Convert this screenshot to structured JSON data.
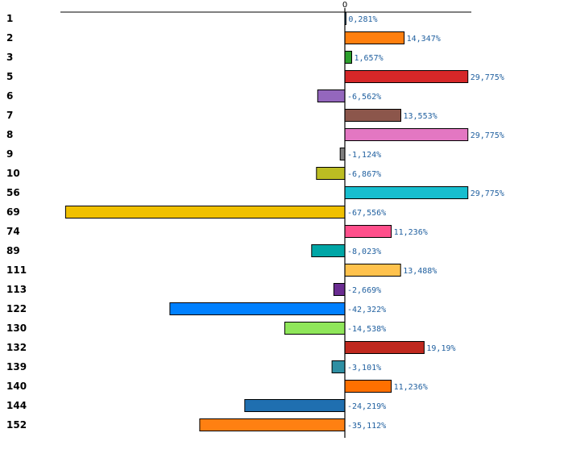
{
  "chart_data": {
    "type": "bar",
    "orientation": "horizontal",
    "title": "",
    "xlabel": "",
    "ylabel": "",
    "xlim": [
      -68,
      30
    ],
    "zero_tick_label": "0",
    "grid": false,
    "legend": "none",
    "categories": [
      "1",
      "2",
      "3",
      "5",
      "6",
      "7",
      "8",
      "9",
      "10",
      "56",
      "69",
      "74",
      "89",
      "111",
      "113",
      "122",
      "130",
      "132",
      "139",
      "140",
      "144",
      "152"
    ],
    "values": [
      0.281,
      14.347,
      1.657,
      29.775,
      -6.562,
      13.553,
      29.775,
      -1.124,
      -6.867,
      29.775,
      -67.556,
      11.236,
      -8.023,
      13.488,
      -2.669,
      -42.322,
      -14.538,
      19.19,
      -3.101,
      11.236,
      -24.219,
      -35.112
    ],
    "value_labels": [
      "0,281%",
      "14,347%",
      "1,657%",
      "29,775%",
      "-6,562%",
      "13,553%",
      "29,775%",
      "-1,124%",
      "-6,867%",
      "29,775%",
      "-67,556%",
      "11,236%",
      "-8,023%",
      "13,488%",
      "-2,669%",
      "-42,322%",
      "-14,538%",
      "19,19%",
      "-3,101%",
      "11,236%",
      "-24,219%",
      "-35,112%"
    ],
    "colors": [
      "#1f77b4",
      "#ff7f0e",
      "#2ca02c",
      "#d62728",
      "#9467bd",
      "#8c564b",
      "#e377c2",
      "#7f7f7f",
      "#bcbd22",
      "#17becf",
      "#f0c000",
      "#ff4f8b",
      "#00a6a6",
      "#ffc24d",
      "#6a2c91",
      "#0080ff",
      "#8fe65a",
      "#c0291f",
      "#2e8fa3",
      "#ff7000",
      "#1f6fb0",
      "#ff8012"
    ]
  }
}
